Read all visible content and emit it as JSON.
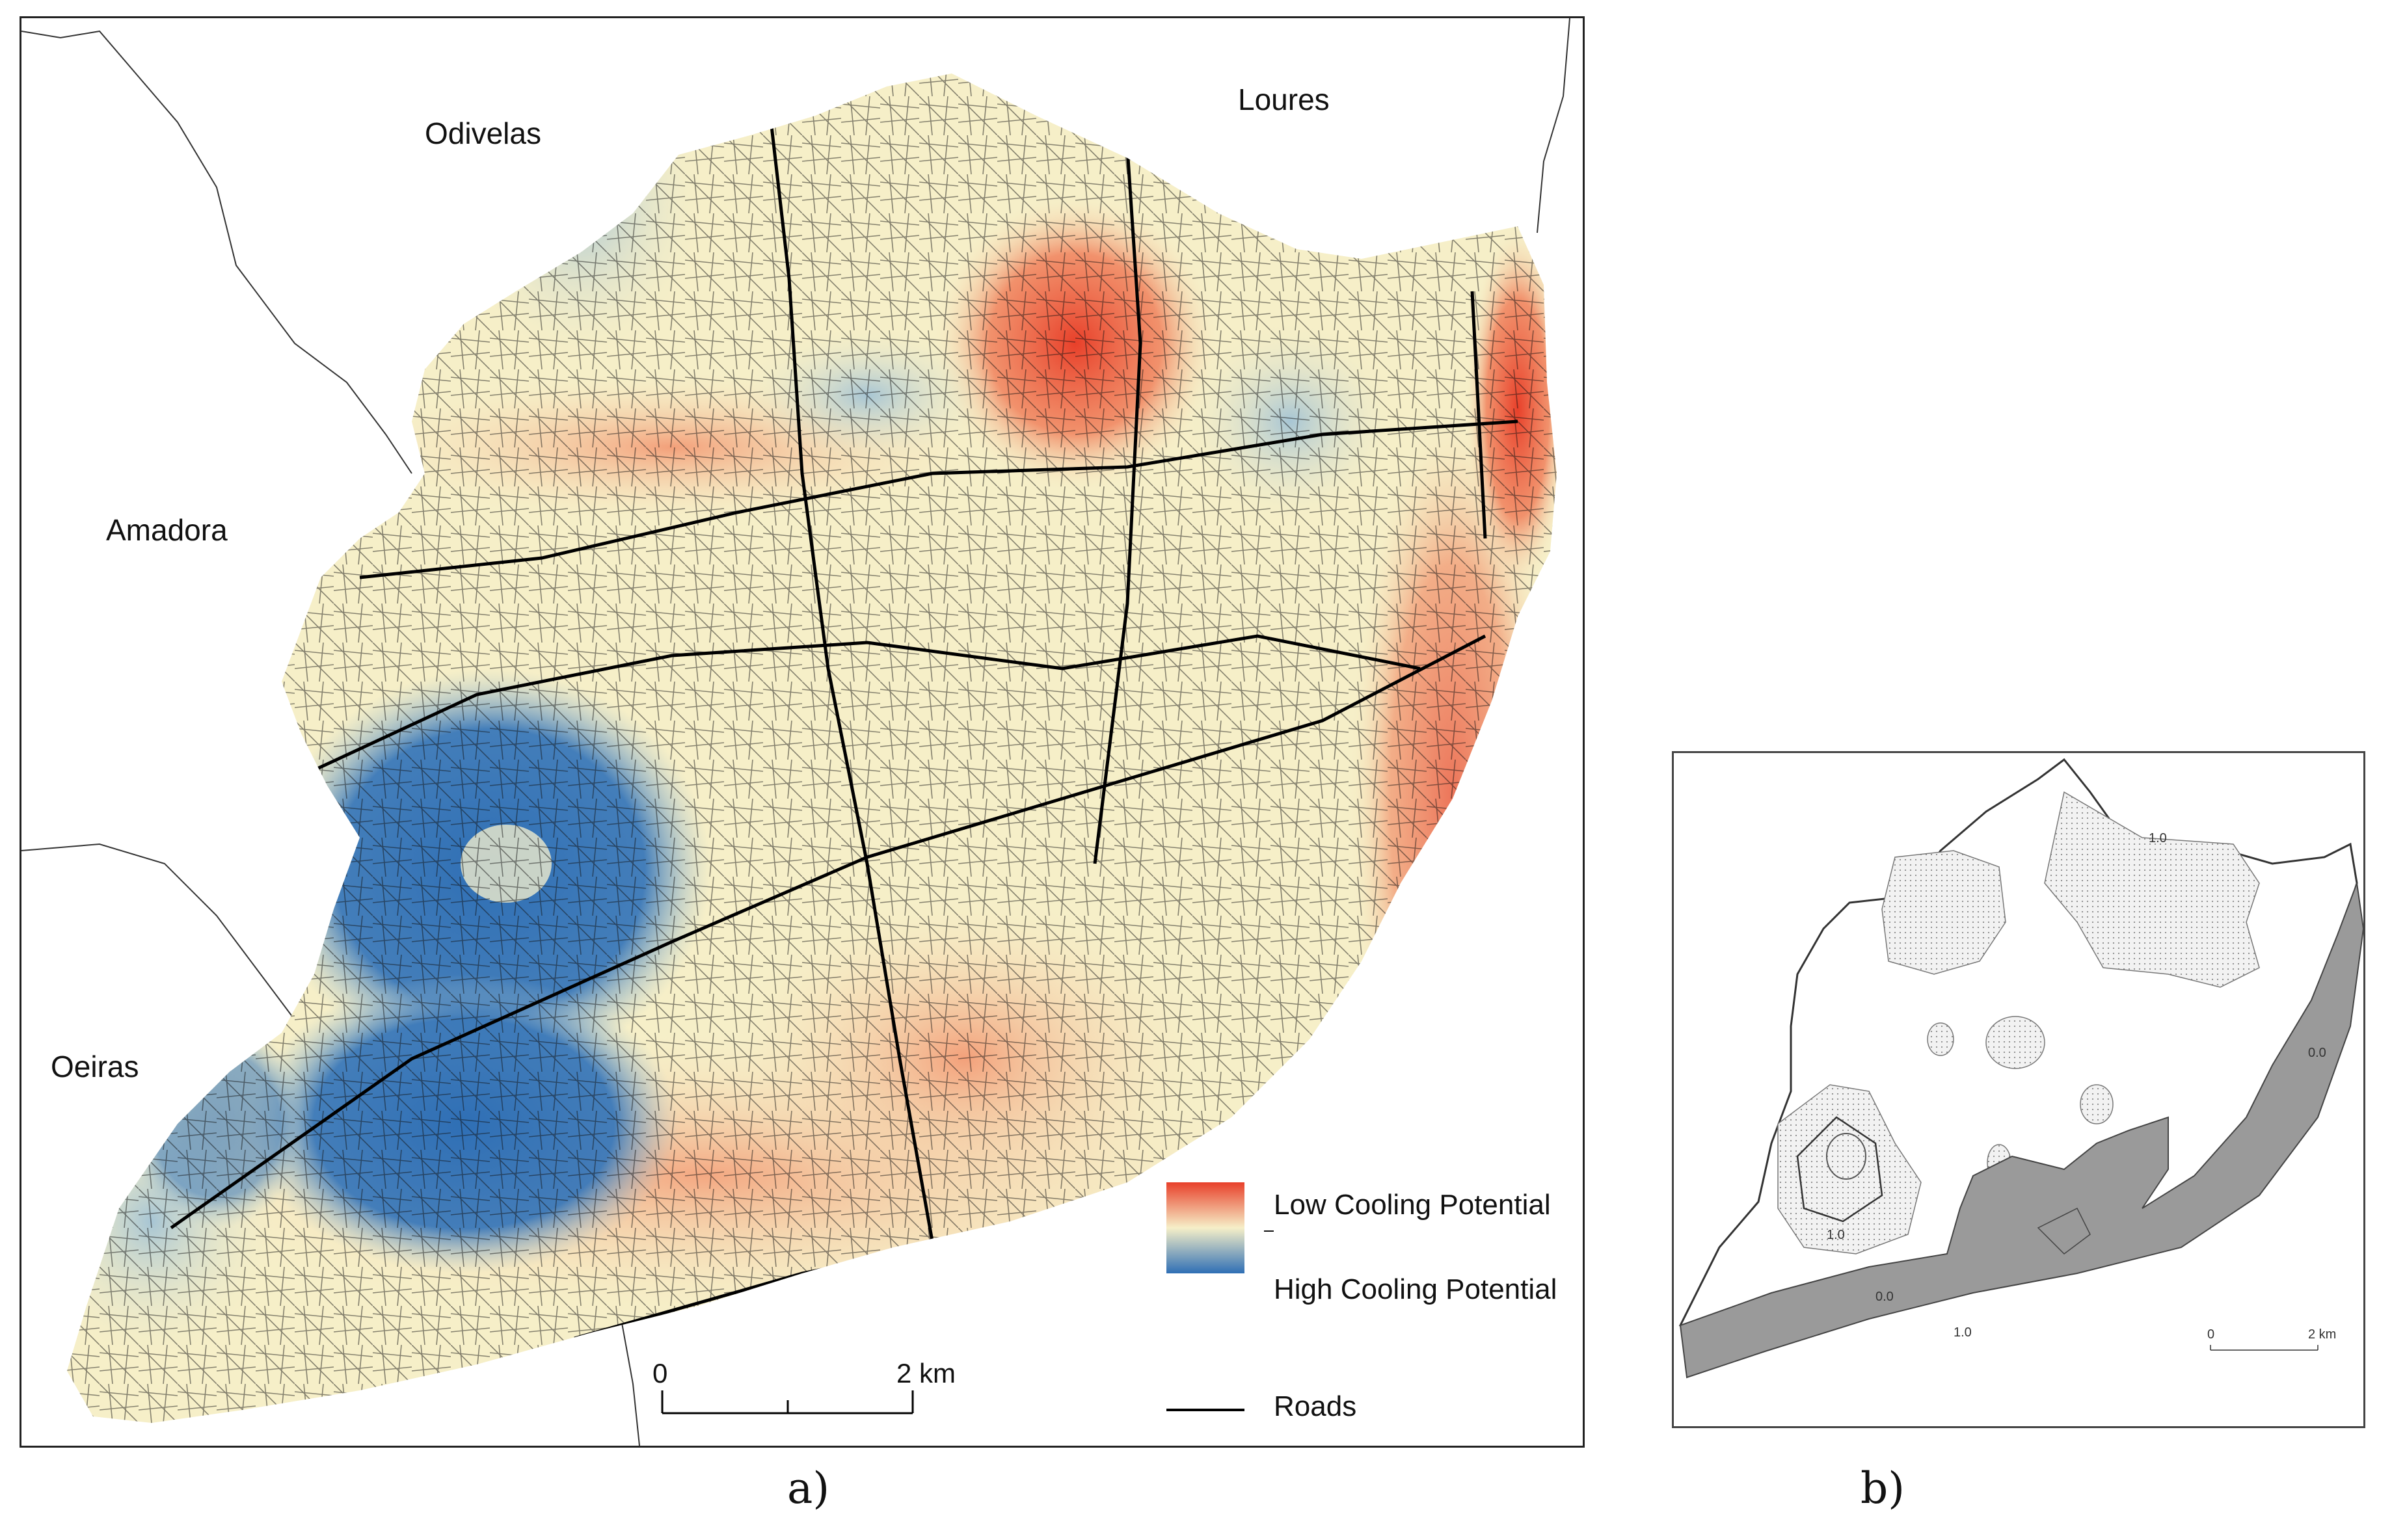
{
  "panel_a": {
    "places": {
      "odivelas": "Odivelas",
      "loures": "Loures",
      "amadora": "Amadora",
      "oeiras": "Oeiras"
    },
    "legend": {
      "low": "Low Cooling Potential",
      "high": "High Cooling Potential",
      "roads": "Roads",
      "colors": {
        "low": "#e8402a",
        "mid": "#f6efc8",
        "high": "#2f6fb5"
      }
    },
    "scale": {
      "start": "0",
      "end": "2 km"
    },
    "caption": "a)"
  },
  "panel_b": {
    "contours": [
      "1.0",
      "0.0",
      "1.0",
      "0.0",
      "1.0"
    ],
    "scale": {
      "start": "0",
      "end": "2 km"
    },
    "caption": "b)"
  }
}
